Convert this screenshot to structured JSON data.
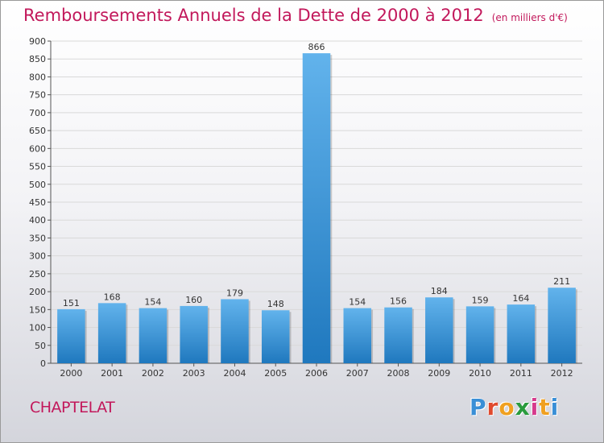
{
  "header": {
    "title": "Remboursements Annuels de la Dette de 2000 à 2012",
    "unit": "(en milliers d'€)"
  },
  "footer": {
    "city": "CHAPTELAT",
    "logo": "Proxiti",
    "logo_colors": [
      "#3a8fd6",
      "#e04a2e",
      "#f0a020",
      "#2a9b3d",
      "#d63a8c",
      "#f0a020",
      "#3a8fd6"
    ]
  },
  "colors": {
    "bar_light": "#62b3ec",
    "bar_dark": "#1f78be",
    "title": "#c2185b",
    "grid": "#d9d9d9"
  },
  "chart_data": {
    "type": "bar",
    "title": "Remboursements Annuels de la Dette de 2000 à 2012",
    "xlabel": "",
    "ylabel": "",
    "categories": [
      "2000",
      "2001",
      "2002",
      "2003",
      "2004",
      "2005",
      "2006",
      "2007",
      "2008",
      "2009",
      "2010",
      "2011",
      "2012"
    ],
    "values": [
      151,
      168,
      154,
      160,
      179,
      148,
      866,
      154,
      156,
      184,
      159,
      164,
      211
    ],
    "ylim": [
      0,
      900
    ],
    "yticks": [
      0,
      50,
      100,
      150,
      200,
      250,
      300,
      350,
      400,
      450,
      500,
      550,
      600,
      650,
      700,
      750,
      800,
      850,
      900
    ],
    "grid": true,
    "legend": "none"
  }
}
